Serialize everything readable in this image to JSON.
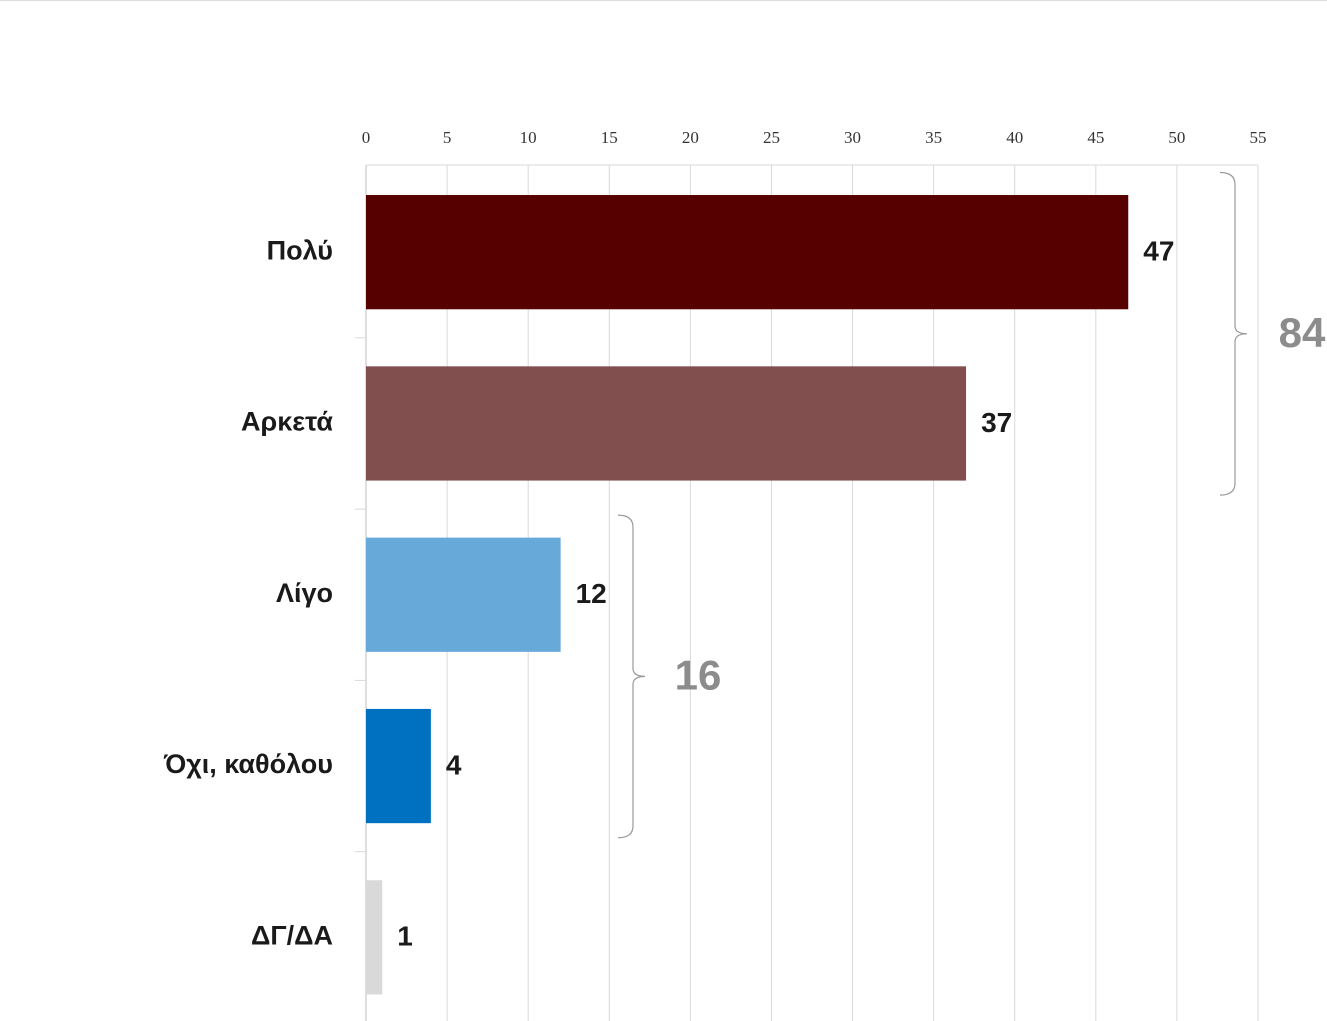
{
  "chart_data": {
    "type": "hbar",
    "categories": [
      "Πολύ",
      "Αρκετά",
      "Λίγο",
      "Όχι, καθόλου",
      "ΔΓ/ΔΑ"
    ],
    "values": [
      47,
      37,
      12,
      4,
      1
    ],
    "colors": [
      "#560000",
      "#824f4f",
      "#67a9d9",
      "#0070c0",
      "#d9d9d9"
    ],
    "xlim": [
      0,
      55
    ],
    "xticks": [
      0,
      5,
      10,
      15,
      20,
      25,
      30,
      35,
      40,
      45,
      50,
      55
    ],
    "grid": true,
    "group_totals": [
      84,
      16
    ]
  }
}
